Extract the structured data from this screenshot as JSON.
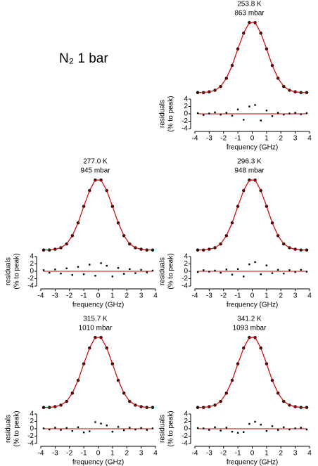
{
  "label": "N₂ 1 bar",
  "chart_data": [
    {
      "type": "scatter",
      "temperature": "253.8 K",
      "pressure": "863 mbar",
      "x": [
        -3.8,
        -3.4,
        -3.0,
        -2.6,
        -2.2,
        -1.8,
        -1.4,
        -1.0,
        -0.6,
        -0.2,
        0.2,
        0.6,
        1.0,
        1.4,
        1.8,
        2.2,
        2.6,
        3.0,
        3.4,
        3.8
      ],
      "profile": {
        "color": "#000000",
        "values": [
          0.05,
          0.05,
          0.06,
          0.08,
          0.13,
          0.24,
          0.41,
          0.63,
          0.84,
          0.98,
          0.98,
          0.84,
          0.63,
          0.41,
          0.24,
          0.13,
          0.08,
          0.06,
          0.05,
          0.05
        ]
      },
      "fit": {
        "color": "#cc0000",
        "values": [
          0.05,
          0.05,
          0.06,
          0.08,
          0.13,
          0.24,
          0.41,
          0.63,
          0.84,
          0.98,
          0.98,
          0.84,
          0.63,
          0.41,
          0.24,
          0.13,
          0.08,
          0.06,
          0.05,
          0.05
        ]
      },
      "residuals": {
        "color": "#000000",
        "values": [
          0.2,
          -0.3,
          0.1,
          0.4,
          -0.2,
          0.3,
          -0.5,
          1.2,
          -1.6,
          2.0,
          2.4,
          -1.8,
          0.9,
          -0.6,
          0.3,
          -0.2,
          0.1,
          0.3,
          -0.1,
          0.2
        ]
      },
      "xlim": [
        -4,
        4
      ],
      "xticks": [
        -4,
        -3,
        -2,
        -1,
        0,
        1,
        2,
        3,
        4
      ],
      "xlabel": "frequency (GHz)",
      "ylabel": [
        "residuals",
        "(% to peak)"
      ],
      "ylim": [
        -4,
        4
      ],
      "yticks": [
        -4,
        -2,
        0,
        2,
        4
      ],
      "profile_ylim": [
        0,
        1
      ]
    },
    {
      "type": "scatter",
      "temperature": "277.0 K",
      "pressure": "945 mbar",
      "x": [
        -3.8,
        -3.4,
        -3.0,
        -2.6,
        -2.2,
        -1.8,
        -1.4,
        -1.0,
        -0.6,
        -0.2,
        0.2,
        0.6,
        1.0,
        1.4,
        1.8,
        2.2,
        2.6,
        3.0,
        3.4,
        3.8
      ],
      "profile": {
        "color": "#000000",
        "values": [
          0.05,
          0.05,
          0.06,
          0.08,
          0.13,
          0.24,
          0.41,
          0.63,
          0.84,
          0.98,
          0.98,
          0.84,
          0.63,
          0.41,
          0.24,
          0.13,
          0.08,
          0.06,
          0.05,
          0.05
        ]
      },
      "fit": {
        "color": "#cc0000",
        "values": [
          0.05,
          0.05,
          0.06,
          0.08,
          0.13,
          0.24,
          0.41,
          0.63,
          0.84,
          0.98,
          0.98,
          0.84,
          0.63,
          0.41,
          0.24,
          0.13,
          0.08,
          0.06,
          0.05,
          0.05
        ]
      },
      "residuals": {
        "color": "#000000",
        "values": [
          0.3,
          -0.4,
          0.5,
          -0.6,
          0.8,
          -1.0,
          1.2,
          -0.8,
          1.8,
          -1.2,
          2.2,
          1.5,
          -1.4,
          0.9,
          -0.7,
          0.6,
          -0.5,
          0.4,
          -0.3,
          0.2
        ]
      },
      "xlim": [
        -4,
        4
      ],
      "xticks": [
        -4,
        -3,
        -2,
        -1,
        0,
        1,
        2,
        3,
        4
      ],
      "xlabel": "frequency (GHz)",
      "ylabel": [
        "residuals",
        "(% to peak)"
      ],
      "ylim": [
        -4,
        4
      ],
      "yticks": [
        -4,
        -2,
        0,
        2,
        4
      ],
      "profile_ylim": [
        0,
        1
      ]
    },
    {
      "type": "scatter",
      "temperature": "296.3 K",
      "pressure": "948 mbar",
      "x": [
        -3.8,
        -3.4,
        -3.0,
        -2.6,
        -2.2,
        -1.8,
        -1.4,
        -1.0,
        -0.6,
        -0.2,
        0.2,
        0.6,
        1.0,
        1.4,
        1.8,
        2.2,
        2.6,
        3.0,
        3.4,
        3.8
      ],
      "profile": {
        "color": "#000000",
        "values": [
          0.05,
          0.05,
          0.06,
          0.08,
          0.13,
          0.24,
          0.41,
          0.63,
          0.84,
          0.98,
          0.98,
          0.84,
          0.63,
          0.41,
          0.24,
          0.13,
          0.08,
          0.06,
          0.05,
          0.05
        ]
      },
      "fit": {
        "color": "#cc0000",
        "values": [
          0.05,
          0.05,
          0.06,
          0.08,
          0.13,
          0.24,
          0.41,
          0.63,
          0.84,
          0.98,
          0.98,
          0.84,
          0.63,
          0.41,
          0.24,
          0.13,
          0.08,
          0.06,
          0.05,
          0.05
        ]
      },
      "residuals": {
        "color": "#000000",
        "values": [
          -0.2,
          0.3,
          -0.1,
          0.2,
          -0.4,
          0.5,
          -0.9,
          0.6,
          -1.4,
          1.9,
          2.5,
          -0.8,
          1.6,
          -0.5,
          0.4,
          -0.6,
          0.3,
          -0.2,
          0.4,
          -0.1
        ]
      },
      "xlim": [
        -4,
        4
      ],
      "xticks": [
        -4,
        -3,
        -2,
        -1,
        0,
        1,
        2,
        3,
        4
      ],
      "xlabel": "frequency (GHz)",
      "ylabel": [
        "residuals",
        "(% to peak)"
      ],
      "ylim": [
        -4,
        4
      ],
      "yticks": [
        -4,
        -2,
        0,
        2,
        4
      ],
      "profile_ylim": [
        0,
        1
      ]
    },
    {
      "type": "scatter",
      "temperature": "315.7 K",
      "pressure": "1010 mbar",
      "x": [
        -3.8,
        -3.4,
        -3.0,
        -2.6,
        -2.2,
        -1.8,
        -1.4,
        -1.0,
        -0.6,
        -0.2,
        0.2,
        0.6,
        1.0,
        1.4,
        1.8,
        2.2,
        2.6,
        3.0,
        3.4,
        3.8
      ],
      "profile": {
        "color": "#000000",
        "values": [
          0.05,
          0.05,
          0.06,
          0.08,
          0.13,
          0.24,
          0.41,
          0.63,
          0.84,
          0.98,
          0.98,
          0.84,
          0.63,
          0.41,
          0.24,
          0.13,
          0.08,
          0.06,
          0.05,
          0.05
        ]
      },
      "fit": {
        "color": "#cc0000",
        "values": [
          0.05,
          0.05,
          0.06,
          0.08,
          0.13,
          0.24,
          0.41,
          0.63,
          0.84,
          0.98,
          0.98,
          0.84,
          0.63,
          0.41,
          0.24,
          0.13,
          0.08,
          0.06,
          0.05,
          0.05
        ]
      },
      "residuals": {
        "color": "#000000",
        "values": [
          0.1,
          -0.2,
          0.3,
          -0.3,
          0.2,
          -0.6,
          0.4,
          -1.0,
          -0.7,
          1.8,
          1.4,
          0.9,
          -0.8,
          0.5,
          -0.4,
          0.3,
          -0.2,
          0.2,
          -0.3,
          0.1
        ]
      },
      "xlim": [
        -4,
        4
      ],
      "xticks": [
        -4,
        -3,
        -2,
        -1,
        0,
        1,
        2,
        3,
        4
      ],
      "xlabel": "frequency (GHz)",
      "ylabel": [
        "residuals",
        "(% to peak)"
      ],
      "ylim": [
        -4,
        4
      ],
      "yticks": [
        -4,
        -2,
        0,
        2,
        4
      ],
      "profile_ylim": [
        0,
        1
      ]
    },
    {
      "type": "scatter",
      "temperature": "341.2 K",
      "pressure": "1093 mbar",
      "x": [
        -3.8,
        -3.4,
        -3.0,
        -2.6,
        -2.2,
        -1.8,
        -1.4,
        -1.0,
        -0.6,
        -0.2,
        0.2,
        0.6,
        1.0,
        1.4,
        1.8,
        2.2,
        2.6,
        3.0,
        3.4,
        3.8
      ],
      "profile": {
        "color": "#000000",
        "values": [
          0.05,
          0.05,
          0.06,
          0.08,
          0.13,
          0.24,
          0.41,
          0.63,
          0.84,
          0.98,
          0.98,
          0.84,
          0.63,
          0.41,
          0.24,
          0.13,
          0.08,
          0.06,
          0.05,
          0.05
        ]
      },
      "fit": {
        "color": "#cc0000",
        "values": [
          0.05,
          0.05,
          0.06,
          0.08,
          0.13,
          0.24,
          0.41,
          0.63,
          0.84,
          0.98,
          0.98,
          0.84,
          0.63,
          0.41,
          0.24,
          0.13,
          0.08,
          0.06,
          0.05,
          0.05
        ]
      },
      "residuals": {
        "color": "#000000",
        "values": [
          0.2,
          0.1,
          -0.3,
          0.4,
          -0.5,
          0.3,
          -0.8,
          -1.1,
          -0.9,
          1.3,
          1.9,
          1.1,
          -0.6,
          0.7,
          -0.3,
          0.4,
          -0.2,
          0.1,
          0.3,
          -0.2
        ]
      },
      "xlim": [
        -4,
        4
      ],
      "xticks": [
        -4,
        -3,
        -2,
        -1,
        0,
        1,
        2,
        3,
        4
      ],
      "xlabel": "frequency (GHz)",
      "ylabel": [
        "residuals",
        "(% to peak)"
      ],
      "ylim": [
        -4,
        4
      ],
      "yticks": [
        -4,
        -2,
        0,
        2,
        4
      ],
      "profile_ylim": [
        0,
        1
      ]
    }
  ]
}
